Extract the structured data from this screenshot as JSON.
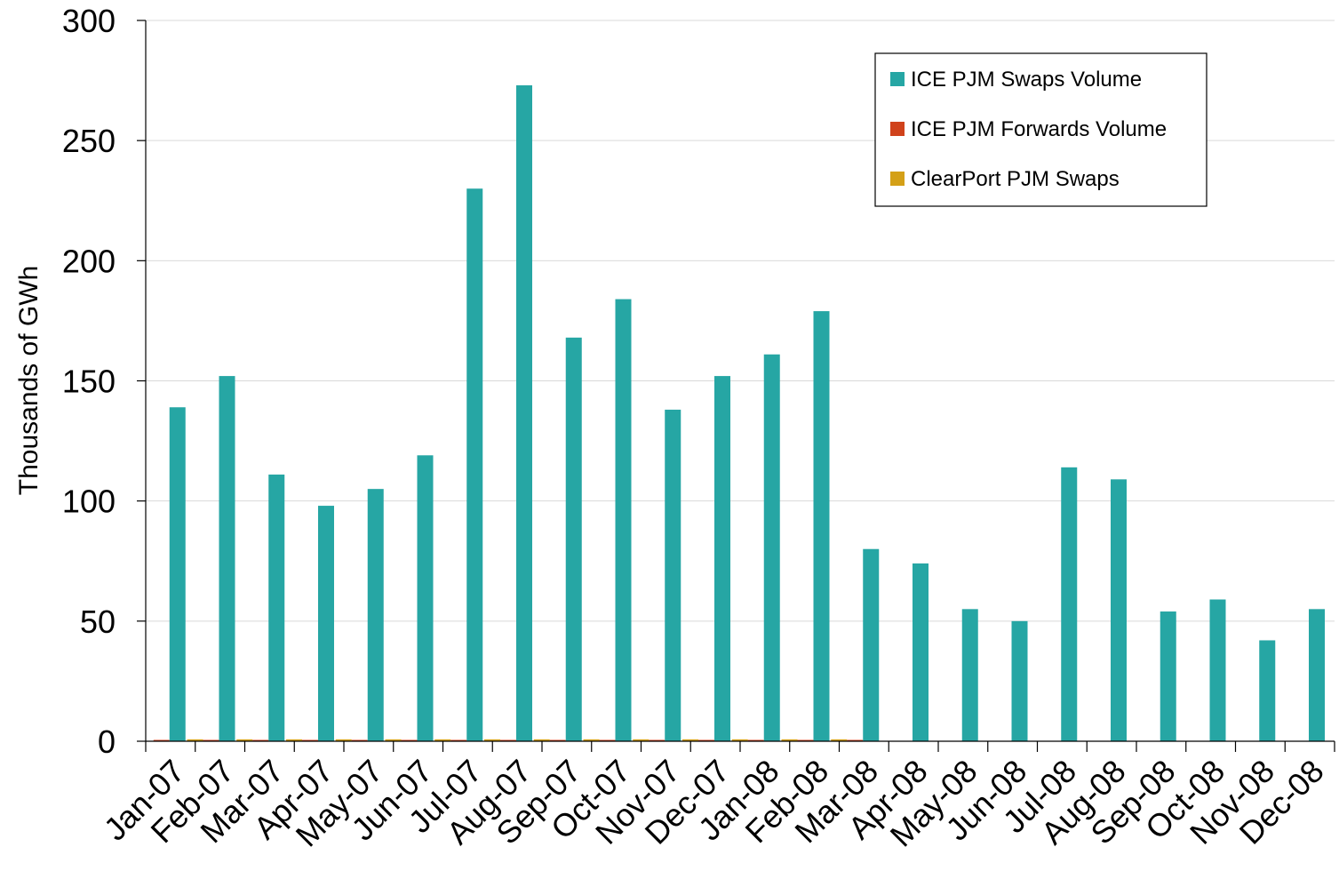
{
  "chart_data": {
    "type": "bar",
    "title": "",
    "xlabel": "",
    "ylabel": "Thousands of GWh",
    "ylim": [
      0,
      300
    ],
    "yticks": [
      0,
      50,
      100,
      150,
      200,
      250,
      300
    ],
    "grid": true,
    "legend_position": "top-right",
    "categories": [
      "Jan-07",
      "Feb-07",
      "Mar-07",
      "Apr-07",
      "May-07",
      "Jun-07",
      "Jul-07",
      "Aug-07",
      "Sep-07",
      "Oct-07",
      "Nov-07",
      "Dec-07",
      "Jan-08",
      "Feb-08",
      "Mar-08",
      "Apr-08",
      "May-08",
      "Jun-08",
      "Jul-08",
      "Aug-08",
      "Sep-08",
      "Oct-08",
      "Nov-08",
      "Dec-08"
    ],
    "series": [
      {
        "name": "ICE PJM Swaps Volume",
        "color": "#26A6A4",
        "values": [
          139,
          152,
          111,
          98,
          105,
          119,
          230,
          273,
          168,
          184,
          138,
          152,
          161,
          179,
          80,
          74,
          55,
          50,
          114,
          109,
          54,
          59,
          42,
          55
        ]
      },
      {
        "name": "ICE PJM Forwards Volume",
        "color": "#D0421B",
        "values": [
          0.2,
          0.2,
          0.2,
          0.2,
          0.2,
          0.2,
          0.2,
          0.2,
          0.2,
          0.2,
          0.2,
          0.2,
          0.2,
          0.2,
          0.2,
          0,
          0,
          0,
          0,
          0,
          0,
          0,
          0,
          0
        ]
      },
      {
        "name": "ClearPort PJM Swaps",
        "color": "#D4A017",
        "values": [
          0,
          0.8,
          0.8,
          0.8,
          0.8,
          0.8,
          0.8,
          0.8,
          0.8,
          0.8,
          0.8,
          0.8,
          0.8,
          0.8,
          0.8,
          0,
          0,
          0,
          0,
          0,
          0,
          0,
          0,
          0
        ]
      }
    ]
  },
  "style": {
    "grid_color": "#D9D9D9",
    "axis_color": "#000000",
    "legend_border_color": "#000000"
  }
}
